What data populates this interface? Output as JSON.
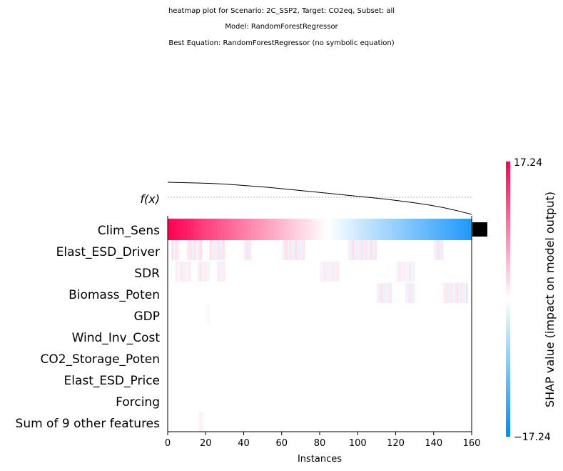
{
  "title_lines": [
    "heatmap plot for Scenario: 2C_SSP2, Target: CO2eq, Subset: all",
    "Model: RandomForestRegressor",
    "Best Equation: RandomForestRegressor (no symbolic equation)"
  ],
  "chart_data": {
    "type": "heatmap",
    "fx_label": "f(x)",
    "features": [
      "Clim_Sens",
      "Elast_ESD_Driver",
      "SDR",
      "Biomass_Poten",
      "GDP",
      "Wind_Inv_Cost",
      "CO2_Storage_Poten",
      "Elast_ESD_Price",
      "Forcing",
      "Sum of 9 other features"
    ],
    "n_instances": 161,
    "xlabel": "Instances",
    "xticks": [
      0,
      20,
      40,
      60,
      80,
      100,
      120,
      140,
      160
    ],
    "colorbar": {
      "label": "SHAP value (impact on model output)",
      "max_label": "17.24",
      "min_label": "−17.24",
      "vmin": -17.24,
      "vmax": 17.24
    },
    "feature_importance_bar": "Clim_Sens",
    "clim_sens_values": [
      17.0,
      16.5,
      16.2,
      15.8,
      15.5,
      15.0,
      14.6,
      14.0,
      13.5,
      13.0,
      12.6,
      12.2,
      11.8,
      11.4,
      11.0,
      10.6,
      10.2,
      9.8,
      9.4,
      9.0,
      8.6,
      8.2,
      7.8,
      7.4,
      7.0,
      6.6,
      6.2,
      5.8,
      5.4,
      5.0,
      4.6,
      4.2,
      3.8,
      3.4,
      3.0,
      2.6,
      2.2,
      1.8,
      1.4,
      1.0,
      0.6,
      0.2,
      -0.2,
      -0.6,
      -1.0,
      -1.4,
      -1.8,
      -2.2,
      -2.6,
      -3.0,
      -3.4,
      -3.8,
      -4.2,
      -4.6,
      -5.0,
      -5.4,
      -5.8,
      -6.2,
      -6.6,
      -7.0,
      -7.4,
      -7.8,
      -8.2,
      -8.6,
      -9.0,
      -9.4,
      -9.8,
      -10.2,
      -10.6,
      -11.0,
      -11.4,
      -11.8,
      -12.2,
      -12.6,
      -13.0,
      -13.4,
      -13.8,
      -14.2,
      -14.6,
      -15.0
    ],
    "fx_curve": [
      0.98,
      0.97,
      0.96,
      0.95,
      0.93,
      0.9,
      0.87,
      0.84,
      0.8,
      0.76,
      0.72,
      0.68,
      0.64,
      0.6,
      0.56,
      0.52,
      0.47,
      0.42,
      0.36,
      0.29,
      0.2,
      0.1
    ]
  }
}
